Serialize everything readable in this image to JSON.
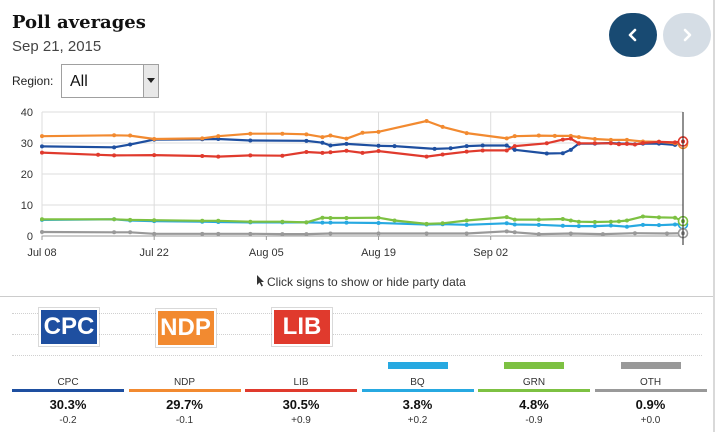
{
  "header": {
    "title": "Poll averages",
    "date": "Sep 21, 2015"
  },
  "nav": {
    "prev_icon": "chevron-left-icon",
    "next_icon": "chevron-right-icon"
  },
  "region": {
    "label": "Region:",
    "value": "All"
  },
  "hint": {
    "text": "Click signs to show or hide party data",
    "icon": "cursor-icon"
  },
  "chart_data": {
    "type": "line",
    "ylim": [
      0,
      40
    ],
    "yticks": [
      "40",
      "30",
      "20",
      "10",
      "0"
    ],
    "xticks": [
      "Jul 08",
      "Jul 22",
      "Aug 05",
      "Aug 19",
      "Sep 02"
    ],
    "grid": true,
    "series": [
      {
        "name": "CPC",
        "color": "#1e4fa0",
        "values": [
          [
            0,
            28.9
          ],
          [
            9,
            28.6
          ],
          [
            11,
            29.5
          ],
          [
            14,
            31.1
          ],
          [
            20,
            31.2
          ],
          [
            22,
            31.3
          ],
          [
            26,
            30.8
          ],
          [
            33,
            30.7
          ],
          [
            35,
            30.1
          ],
          [
            36,
            29.2
          ],
          [
            38,
            29.7
          ],
          [
            42,
            29.1
          ],
          [
            44,
            29.0
          ],
          [
            49,
            28.1
          ],
          [
            51,
            28.3
          ],
          [
            53,
            29.0
          ],
          [
            55,
            29.2
          ],
          [
            58,
            29.2
          ],
          [
            59,
            27.8
          ],
          [
            63,
            26.6
          ],
          [
            65,
            26.7
          ],
          [
            66,
            27.8
          ],
          [
            67,
            29.8
          ],
          [
            69,
            29.8
          ],
          [
            71,
            30.0
          ],
          [
            72,
            29.8
          ],
          [
            73,
            29.8
          ],
          [
            74,
            29.6
          ],
          [
            75,
            29.8
          ],
          [
            77,
            29.8
          ],
          [
            79,
            29.4
          ],
          [
            80,
            30.3
          ]
        ]
      },
      {
        "name": "NDP",
        "color": "#f28a30",
        "values": [
          [
            0,
            32.2
          ],
          [
            9,
            32.5
          ],
          [
            11,
            32.4
          ],
          [
            14,
            31.3
          ],
          [
            20,
            31.5
          ],
          [
            22,
            32.2
          ],
          [
            26,
            33.0
          ],
          [
            30,
            33.0
          ],
          [
            33,
            32.8
          ],
          [
            35,
            31.9
          ],
          [
            36,
            32.4
          ],
          [
            38,
            31.4
          ],
          [
            40,
            33.3
          ],
          [
            42,
            33.6
          ],
          [
            48,
            37.1
          ],
          [
            50,
            35.2
          ],
          [
            53,
            33.2
          ],
          [
            58,
            31.5
          ],
          [
            59,
            32.2
          ],
          [
            62,
            32.4
          ],
          [
            64,
            32.3
          ],
          [
            66,
            32.3
          ],
          [
            67,
            31.9
          ],
          [
            69,
            31.3
          ],
          [
            71,
            31.0
          ],
          [
            73,
            31.0
          ],
          [
            75,
            30.5
          ],
          [
            77,
            30.4
          ],
          [
            79,
            29.9
          ],
          [
            80,
            29.7
          ]
        ]
      },
      {
        "name": "LIB",
        "color": "#e03a2d",
        "values": [
          [
            0,
            26.9
          ],
          [
            7,
            26.2
          ],
          [
            9,
            26.0
          ],
          [
            14,
            26.1
          ],
          [
            20,
            25.8
          ],
          [
            22,
            25.6
          ],
          [
            26,
            26.0
          ],
          [
            30,
            25.9
          ],
          [
            33,
            27.1
          ],
          [
            35,
            26.8
          ],
          [
            36,
            27.0
          ],
          [
            38,
            27.5
          ],
          [
            40,
            26.8
          ],
          [
            42,
            27.4
          ],
          [
            48,
            25.6
          ],
          [
            50,
            26.3
          ],
          [
            53,
            27.2
          ],
          [
            55,
            27.6
          ],
          [
            58,
            27.6
          ],
          [
            59,
            29.0
          ],
          [
            63,
            29.9
          ],
          [
            65,
            31.1
          ],
          [
            66,
            31.4
          ],
          [
            67,
            29.9
          ],
          [
            69,
            29.9
          ],
          [
            71,
            29.9
          ],
          [
            72,
            29.6
          ],
          [
            73,
            29.7
          ],
          [
            74,
            29.5
          ],
          [
            75,
            30.0
          ],
          [
            77,
            30.4
          ],
          [
            79,
            30.2
          ],
          [
            80,
            30.5
          ]
        ]
      },
      {
        "name": "BQ",
        "color": "#27a9e1",
        "values": [
          [
            0,
            5.2
          ],
          [
            9,
            5.4
          ],
          [
            11,
            5.0
          ],
          [
            14,
            4.8
          ],
          [
            20,
            4.6
          ],
          [
            22,
            4.5
          ],
          [
            26,
            4.4
          ],
          [
            30,
            4.4
          ],
          [
            33,
            4.4
          ],
          [
            35,
            4.3
          ],
          [
            36,
            4.3
          ],
          [
            38,
            4.3
          ],
          [
            42,
            4.2
          ],
          [
            48,
            3.7
          ],
          [
            50,
            3.8
          ],
          [
            53,
            3.6
          ],
          [
            58,
            4.1
          ],
          [
            59,
            3.7
          ],
          [
            62,
            3.6
          ],
          [
            65,
            3.3
          ],
          [
            67,
            3.2
          ],
          [
            69,
            3.2
          ],
          [
            71,
            3.4
          ],
          [
            73,
            3.0
          ],
          [
            75,
            3.6
          ],
          [
            77,
            3.5
          ],
          [
            79,
            3.7
          ],
          [
            80,
            3.8
          ]
        ]
      },
      {
        "name": "GRN",
        "color": "#7dc142",
        "values": [
          [
            0,
            5.4
          ],
          [
            9,
            5.4
          ],
          [
            11,
            5.2
          ],
          [
            14,
            5.1
          ],
          [
            20,
            4.9
          ],
          [
            22,
            4.9
          ],
          [
            26,
            4.6
          ],
          [
            30,
            4.6
          ],
          [
            33,
            4.4
          ],
          [
            35,
            5.9
          ],
          [
            36,
            5.8
          ],
          [
            38,
            5.8
          ],
          [
            42,
            5.9
          ],
          [
            44,
            5.0
          ],
          [
            48,
            3.9
          ],
          [
            50,
            4.1
          ],
          [
            53,
            5.0
          ],
          [
            58,
            6.1
          ],
          [
            59,
            5.3
          ],
          [
            62,
            5.3
          ],
          [
            65,
            5.5
          ],
          [
            66,
            5.0
          ],
          [
            67,
            4.6
          ],
          [
            69,
            4.5
          ],
          [
            71,
            4.6
          ],
          [
            72,
            4.7
          ],
          [
            73,
            5.0
          ],
          [
            75,
            6.3
          ],
          [
            77,
            6.0
          ],
          [
            79,
            5.9
          ],
          [
            80,
            4.8
          ]
        ]
      },
      {
        "name": "OTH",
        "color": "#999999",
        "values": [
          [
            0,
            1.3
          ],
          [
            9,
            1.2
          ],
          [
            11,
            1.2
          ],
          [
            14,
            0.7
          ],
          [
            20,
            0.7
          ],
          [
            22,
            0.7
          ],
          [
            26,
            0.7
          ],
          [
            30,
            0.6
          ],
          [
            33,
            0.6
          ],
          [
            36,
            0.8
          ],
          [
            42,
            0.8
          ],
          [
            48,
            0.8
          ],
          [
            53,
            0.8
          ],
          [
            58,
            1.5
          ],
          [
            59,
            1.2
          ],
          [
            62,
            0.6
          ],
          [
            66,
            0.8
          ],
          [
            70,
            0.6
          ],
          [
            74,
            0.9
          ],
          [
            78,
            0.8
          ],
          [
            80,
            0.9
          ]
        ]
      }
    ]
  },
  "parties": [
    {
      "code": "CPC",
      "color": "#1e4fa0",
      "pct": "30.3%",
      "change": "-0.2",
      "sign_label": "CPC",
      "sign_level": 1.0
    },
    {
      "code": "NDP",
      "color": "#f28a30",
      "pct": "29.7%",
      "change": "-0.1",
      "sign_label": "NDP",
      "sign_level": 0.98
    },
    {
      "code": "LIB",
      "color": "#e03a2d",
      "pct": "30.5%",
      "change": "+0.9",
      "sign_label": "LIB",
      "sign_level": 1.0
    },
    {
      "code": "BQ",
      "color": "#27a9e1",
      "pct": "3.8%",
      "change": "+0.2",
      "sign_label": "",
      "sign_level": 0.125
    },
    {
      "code": "GRN",
      "color": "#7dc142",
      "pct": "4.8%",
      "change": "-0.9",
      "sign_label": "",
      "sign_level": 0.16
    },
    {
      "code": "OTH",
      "color": "#999999",
      "pct": "0.9%",
      "change": "+0.0",
      "sign_label": "",
      "sign_level": 0.03
    }
  ]
}
